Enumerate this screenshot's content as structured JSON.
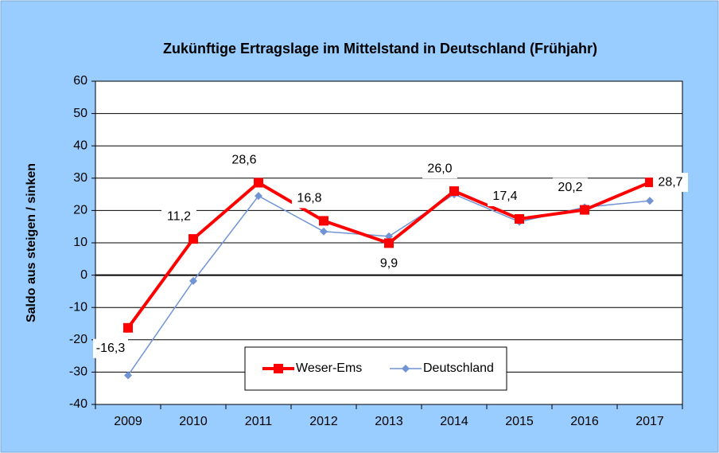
{
  "chart_data": {
    "type": "line",
    "title": "Zukünftige Ertragslage im Mittelstand in Deutschland (Frühjahr)",
    "y_label": "Saldo aus steigen / sinken",
    "categories": [
      "2009",
      "2010",
      "2011",
      "2012",
      "2013",
      "2014",
      "2015",
      "2016",
      "2017"
    ],
    "series": [
      {
        "name": "Weser-Ems",
        "color": "#ff0000",
        "marker": "square",
        "values": [
          -16.3,
          11.2,
          28.6,
          16.8,
          9.9,
          26.0,
          17.4,
          20.2,
          28.7
        ],
        "value_labels": [
          "-16,3",
          "11,2",
          "28,6",
          "16,8",
          "9,9",
          "26,0",
          "17,4",
          "20,2",
          "28,7"
        ]
      },
      {
        "name": "Deutschland",
        "color": "#7094d4",
        "marker": "diamond",
        "values": [
          -31,
          -1.8,
          24.5,
          13.5,
          12,
          25,
          16.5,
          21,
          23
        ]
      }
    ],
    "ylim": [
      -40,
      60
    ],
    "yticks": [
      -40,
      -30,
      -20,
      -10,
      0,
      10,
      20,
      30,
      40,
      50,
      60
    ],
    "grid": true,
    "legend": "bottom"
  }
}
